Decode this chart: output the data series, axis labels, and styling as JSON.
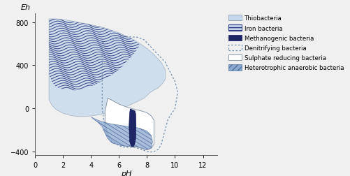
{
  "xlabel": "pH",
  "ylabel": "Eh",
  "xlim": [
    0,
    13
  ],
  "ylim": [
    -430,
    880
  ],
  "xticks": [
    0,
    2,
    4,
    6,
    8,
    10,
    12
  ],
  "yticks": [
    -400,
    0,
    400,
    800
  ],
  "bg_color": "#f0f0f0",
  "thiobacteria_color": "#c5d8ec",
  "iron_line_color": "#2a3580",
  "methano_color": "#1e2666",
  "denitrify_edge": "#7090b0",
  "sulphate_color": "#ffffff",
  "hetero_color": "#8aaad0",
  "legend_entries": [
    "Thiobacteria",
    "Iron bacteria",
    "Methanogenic bacteria",
    "Denitrifying bacteria",
    "Sulphate reducing bacteria",
    "Heterotrophic anaerobic bacteria"
  ],
  "thio_verts": [
    [
      1.0,
      830
    ],
    [
      1.5,
      830
    ],
    [
      2.2,
      820
    ],
    [
      3.0,
      800
    ],
    [
      4.0,
      775
    ],
    [
      5.0,
      745
    ],
    [
      6.0,
      700
    ],
    [
      7.0,
      640
    ],
    [
      7.5,
      600
    ],
    [
      8.0,
      555
    ],
    [
      8.5,
      500
    ],
    [
      9.0,
      430
    ],
    [
      9.3,
      360
    ],
    [
      9.3,
      270
    ],
    [
      9.1,
      230
    ],
    [
      8.8,
      190
    ],
    [
      8.5,
      170
    ],
    [
      8.2,
      145
    ],
    [
      8.0,
      120
    ],
    [
      7.8,
      95
    ],
    [
      7.5,
      75
    ],
    [
      7.0,
      45
    ],
    [
      6.5,
      15
    ],
    [
      6.0,
      -5
    ],
    [
      5.5,
      -25
    ],
    [
      5.0,
      -45
    ],
    [
      4.5,
      -60
    ],
    [
      4.0,
      -70
    ],
    [
      3.5,
      -75
    ],
    [
      3.0,
      -75
    ],
    [
      2.5,
      -65
    ],
    [
      2.0,
      -45
    ],
    [
      1.5,
      -10
    ],
    [
      1.2,
      30
    ],
    [
      1.0,
      80
    ]
  ],
  "iron_verts": [
    [
      1.0,
      830
    ],
    [
      1.5,
      830
    ],
    [
      2.2,
      820
    ],
    [
      3.0,
      800
    ],
    [
      4.0,
      775
    ],
    [
      5.0,
      745
    ],
    [
      6.0,
      700
    ],
    [
      7.0,
      640
    ],
    [
      7.5,
      590
    ],
    [
      7.2,
      530
    ],
    [
      6.8,
      470
    ],
    [
      6.4,
      410
    ],
    [
      6.0,
      360
    ],
    [
      5.5,
      310
    ],
    [
      5.0,
      270
    ],
    [
      4.5,
      235
    ],
    [
      4.0,
      205
    ],
    [
      3.5,
      185
    ],
    [
      3.0,
      170
    ],
    [
      2.5,
      165
    ],
    [
      2.0,
      175
    ],
    [
      1.5,
      200
    ],
    [
      1.2,
      250
    ],
    [
      1.0,
      320
    ]
  ],
  "denit_verts": [
    [
      4.8,
      610
    ],
    [
      5.5,
      640
    ],
    [
      6.5,
      665
    ],
    [
      7.3,
      660
    ],
    [
      7.8,
      635
    ],
    [
      8.2,
      580
    ],
    [
      8.7,
      510
    ],
    [
      9.3,
      430
    ],
    [
      9.6,
      350
    ],
    [
      10.0,
      250
    ],
    [
      10.2,
      150
    ],
    [
      10.0,
      0
    ],
    [
      9.5,
      -100
    ],
    [
      9.0,
      -340
    ],
    [
      8.8,
      -380
    ],
    [
      8.5,
      -400
    ],
    [
      8.2,
      -405
    ],
    [
      7.8,
      -390
    ],
    [
      7.5,
      -375
    ],
    [
      7.2,
      -365
    ],
    [
      7.0,
      -360
    ],
    [
      6.8,
      -360
    ],
    [
      6.5,
      -360
    ],
    [
      6.2,
      -355
    ],
    [
      6.0,
      -345
    ],
    [
      5.8,
      -330
    ],
    [
      5.5,
      -310
    ],
    [
      5.2,
      -270
    ],
    [
      5.0,
      -200
    ],
    [
      4.9,
      -100
    ],
    [
      4.8,
      0
    ],
    [
      4.8,
      610
    ]
  ],
  "sulph_verts": [
    [
      5.2,
      95
    ],
    [
      5.5,
      75
    ],
    [
      6.0,
      40
    ],
    [
      6.5,
      15
    ],
    [
      7.0,
      -5
    ],
    [
      7.5,
      -20
    ],
    [
      8.0,
      -40
    ],
    [
      8.3,
      -70
    ],
    [
      8.5,
      -110
    ],
    [
      8.5,
      -330
    ],
    [
      8.3,
      -370
    ],
    [
      8.0,
      -385
    ],
    [
      7.7,
      -375
    ],
    [
      7.5,
      -365
    ],
    [
      7.2,
      -355
    ],
    [
      7.0,
      -350
    ],
    [
      6.8,
      -350
    ],
    [
      6.5,
      -350
    ],
    [
      6.2,
      -345
    ],
    [
      6.0,
      -335
    ],
    [
      5.8,
      -320
    ],
    [
      5.5,
      -295
    ],
    [
      5.2,
      -240
    ],
    [
      5.0,
      -150
    ],
    [
      5.0,
      -30
    ],
    [
      5.2,
      95
    ]
  ],
  "hetero_verts": [
    [
      4.0,
      -80
    ],
    [
      4.5,
      -110
    ],
    [
      5.0,
      -130
    ],
    [
      5.5,
      -145
    ],
    [
      6.0,
      -155
    ],
    [
      6.5,
      -165
    ],
    [
      7.0,
      -170
    ],
    [
      7.5,
      -185
    ],
    [
      8.0,
      -210
    ],
    [
      8.3,
      -250
    ],
    [
      8.4,
      -310
    ],
    [
      8.3,
      -365
    ],
    [
      8.0,
      -380
    ],
    [
      7.7,
      -370
    ],
    [
      7.5,
      -360
    ],
    [
      7.0,
      -350
    ],
    [
      6.5,
      -350
    ],
    [
      6.0,
      -340
    ],
    [
      5.5,
      -320
    ],
    [
      5.2,
      -280
    ],
    [
      5.0,
      -230
    ],
    [
      4.8,
      -170
    ],
    [
      4.5,
      -130
    ],
    [
      4.0,
      -80
    ]
  ],
  "methan_verts": [
    [
      6.8,
      -5
    ],
    [
      7.0,
      -15
    ],
    [
      7.15,
      -25
    ],
    [
      7.2,
      -55
    ],
    [
      7.22,
      -150
    ],
    [
      7.2,
      -280
    ],
    [
      7.1,
      -340
    ],
    [
      7.0,
      -360
    ],
    [
      6.85,
      -345
    ],
    [
      6.75,
      -300
    ],
    [
      6.72,
      -150
    ],
    [
      6.75,
      -55
    ],
    [
      6.8,
      -5
    ]
  ]
}
